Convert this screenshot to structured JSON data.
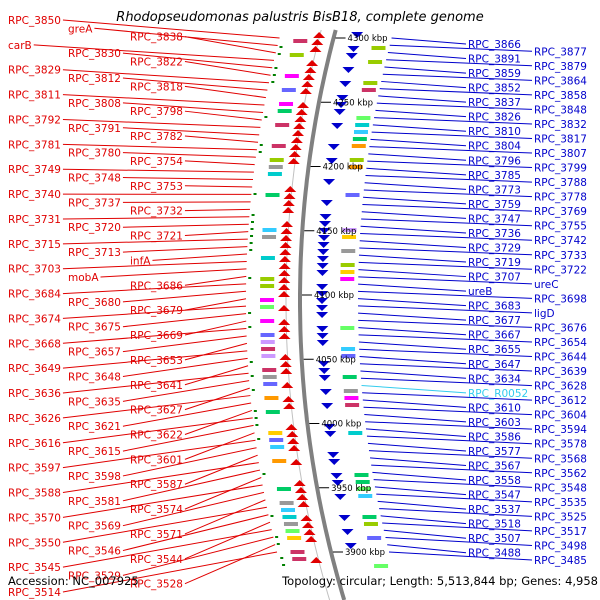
{
  "title": "Rhodopseudomonas palustris BisB18, complete genome",
  "footer": {
    "accession": "Accession: NC_007925",
    "topology": "Topology: circular; Length: 5,513,844 bp; Genes: 4,958"
  },
  "colors": {
    "forward": "#e00000",
    "reverse": "#0000cc",
    "rna": "#33ccee",
    "backbone": "#808080",
    "tick": "#008000"
  },
  "ticks": [
    {
      "label": "4300 kbp",
      "pos": 4300
    },
    {
      "label": "4250 kbp",
      "pos": 4250
    },
    {
      "label": "4200 kbp",
      "pos": 4200
    },
    {
      "label": "4150 kbp",
      "pos": 4150
    },
    {
      "label": "4100 kbp",
      "pos": 4100
    },
    {
      "label": "4050 kbp",
      "pos": 4050
    },
    {
      "label": "4000 kbp",
      "pos": 4000
    },
    {
      "label": "3950 kbp",
      "pos": 3950
    },
    {
      "label": "3900 kbp",
      "pos": 3900
    }
  ],
  "left_labels": [
    "RPC_3850",
    "greA",
    "RPC_3838",
    "carB",
    "RPC_3830",
    "RPC_3822",
    "RPC_3829",
    "RPC_3812",
    "RPC_3818",
    "RPC_3811",
    "RPC_3808",
    "RPC_3798",
    "RPC_3792",
    "RPC_3791",
    "RPC_3782",
    "RPC_3781",
    "RPC_3780",
    "RPC_3754",
    "RPC_3749",
    "RPC_3748",
    "RPC_3753",
    "RPC_3740",
    "RPC_3737",
    "RPC_3732",
    "RPC_3731",
    "RPC_3720",
    "RPC_3721",
    "RPC_3715",
    "RPC_3713",
    "infA",
    "RPC_3703",
    "mobA",
    "RPC_3686",
    "RPC_3684",
    "RPC_3680",
    "RPC_3679",
    "RPC_3674",
    "RPC_3675",
    "RPC_3669",
    "RPC_3668",
    "RPC_3657",
    "RPC_3653",
    "RPC_3649",
    "RPC_3648",
    "RPC_3641",
    "RPC_3636",
    "RPC_3635",
    "RPC_3627",
    "RPC_3626",
    "RPC_3621",
    "RPC_3622",
    "RPC_3616",
    "RPC_3615",
    "RPC_3601",
    "RPC_3597",
    "RPC_3598",
    "RPC_3587",
    "RPC_3588",
    "RPC_3581",
    "RPC_3574",
    "RPC_3570",
    "RPC_3569",
    "RPC_3571",
    "RPC_3550",
    "RPC_3546",
    "RPC_3544",
    "RPC_3545",
    "RPC_3529",
    "RPC_3528",
    "RPC_3514"
  ],
  "right_labels": [
    "RPC_3866",
    "RPC_3877",
    "RPC_3891",
    "RPC_3879",
    "RPC_3859",
    "RPC_3864",
    "RPC_3852",
    "RPC_3858",
    "RPC_3837",
    "RPC_3848",
    "RPC_3826",
    "RPC_3832",
    "RPC_3810",
    "RPC_3817",
    "RPC_3804",
    "RPC_3807",
    "RPC_3796",
    "RPC_3799",
    "RPC_3785",
    "RPC_3788",
    "RPC_3773",
    "RPC_3778",
    "RPC_3759",
    "RPC_3769",
    "RPC_3747",
    "RPC_3755",
    "RPC_3736",
    "RPC_3742",
    "RPC_3729",
    "RPC_3733",
    "RPC_3719",
    "RPC_3722",
    "RPC_3707",
    "ureC",
    "ureB",
    "RPC_3698",
    "RPC_3683",
    "ligD",
    "RPC_3677",
    "RPC_3676",
    "RPC_3667",
    "RPC_3654",
    "RPC_3655",
    "RPC_3644",
    "RPC_3647",
    "RPC_3639",
    "RPC_3634",
    "RPC_3628",
    "RPC_R0052",
    "RPC_3612",
    "RPC_3610",
    "RPC_3604",
    "RPC_3603",
    "RPC_3594",
    "RPC_3586",
    "RPC_3578",
    "RPC_3577",
    "RPC_3568",
    "RPC_3567",
    "RPC_3562",
    "RPC_3558",
    "RPC_3548",
    "RPC_3547",
    "RPC_3535",
    "RPC_3537",
    "RPC_3525",
    "RPC_3518",
    "RPC_3517",
    "RPC_3507",
    "RPC_3498",
    "RPC_3488",
    "RPC_3485"
  ]
}
